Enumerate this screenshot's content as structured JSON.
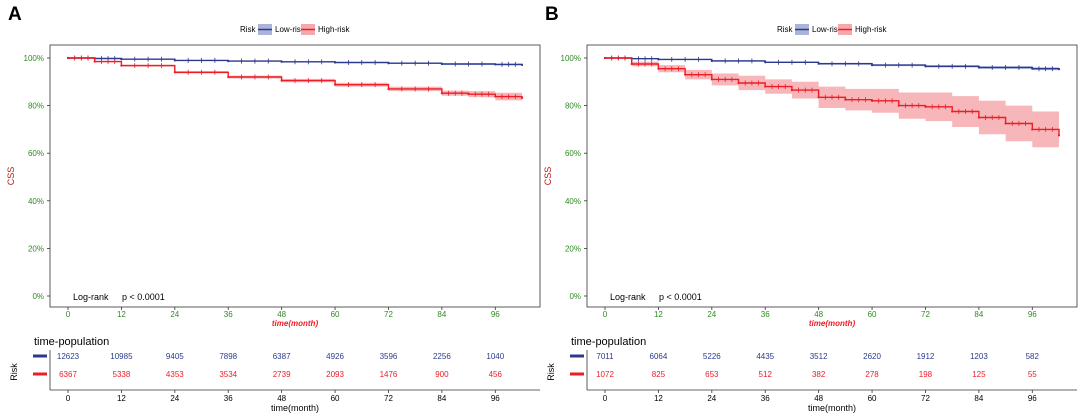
{
  "panels": [
    {
      "label": "A",
      "legend": {
        "title": "Risk",
        "low_label": "Low-risk",
        "high_label": "High-risk"
      },
      "y_label": "CSS",
      "x_label_main": "time(month)",
      "x_label_table": "time(month)",
      "annotation_test": "Log-rank",
      "annotation_p": "p < 0.0001",
      "table_title": "time-population",
      "table_y_label": "Risk",
      "low_counts": [
        "12623",
        "10985",
        "9405",
        "7898",
        "6387",
        "4926",
        "3596",
        "2256",
        "1040"
      ],
      "high_counts": [
        "6367",
        "5338",
        "4353",
        "3534",
        "2739",
        "2093",
        "1476",
        "900",
        "456"
      ]
    },
    {
      "label": "B",
      "legend": {
        "title": "Risk",
        "low_label": "Low-risk",
        "high_label": "High-risk"
      },
      "y_label": "CSS",
      "x_label_main": "time(month)",
      "x_label_table": "time(month)",
      "annotation_test": "Log-rank",
      "annotation_p": "p < 0.0001",
      "table_title": "time-population",
      "table_y_label": "Risk",
      "low_counts": [
        "7011",
        "6064",
        "5226",
        "4435",
        "3512",
        "2620",
        "1912",
        "1203",
        "582"
      ],
      "high_counts": [
        "1072",
        "825",
        "653",
        "512",
        "382",
        "278",
        "198",
        "125",
        "55"
      ]
    }
  ],
  "colors": {
    "low": "#2b3a8f",
    "high": "#ee1c25",
    "low_band": "#aab3d9",
    "high_band": "#f6a9ad",
    "tick_green": "#2e8b22",
    "ylabel_red": "#b71c1c"
  },
  "chart_data": [
    {
      "type": "line",
      "title": "A",
      "xlabel": "time(month)",
      "ylabel": "CSS",
      "x_ticks": [
        0,
        12,
        24,
        36,
        48,
        60,
        72,
        84,
        96
      ],
      "y_ticks": [
        "0%",
        "20%",
        "40%",
        "60%",
        "80%",
        "100%"
      ],
      "xlim": [
        0,
        102
      ],
      "ylim": [
        0,
        1
      ],
      "series": [
        {
          "name": "Low-risk",
          "x": [
            0,
            6,
            12,
            24,
            36,
            48,
            60,
            72,
            84,
            96,
            102
          ],
          "values": [
            1.0,
            0.998,
            0.995,
            0.99,
            0.987,
            0.984,
            0.981,
            0.978,
            0.975,
            0.973,
            0.971
          ],
          "lower": [
            1.0,
            0.997,
            0.994,
            0.989,
            0.985,
            0.982,
            0.979,
            0.976,
            0.972,
            0.969,
            0.966
          ],
          "upper": [
            1.0,
            0.999,
            0.996,
            0.991,
            0.989,
            0.986,
            0.983,
            0.98,
            0.978,
            0.977,
            0.976
          ]
        },
        {
          "name": "High-risk",
          "x": [
            0,
            6,
            12,
            24,
            36,
            48,
            60,
            72,
            84,
            90,
            96,
            102
          ],
          "values": [
            1.0,
            0.985,
            0.968,
            0.94,
            0.92,
            0.905,
            0.888,
            0.87,
            0.852,
            0.848,
            0.838,
            0.832
          ],
          "lower": [
            1.0,
            0.982,
            0.964,
            0.935,
            0.914,
            0.898,
            0.88,
            0.861,
            0.841,
            0.835,
            0.822,
            0.815
          ],
          "upper": [
            1.0,
            0.988,
            0.972,
            0.945,
            0.926,
            0.912,
            0.896,
            0.879,
            0.863,
            0.861,
            0.854,
            0.849
          ]
        }
      ]
    },
    {
      "type": "line",
      "title": "B",
      "xlabel": "time(month)",
      "ylabel": "CSS",
      "x_ticks": [
        0,
        12,
        24,
        36,
        48,
        60,
        72,
        84,
        96
      ],
      "y_ticks": [
        "0%",
        "20%",
        "40%",
        "60%",
        "80%",
        "100%"
      ],
      "xlim": [
        0,
        102
      ],
      "ylim": [
        0,
        1
      ],
      "series": [
        {
          "name": "Low-risk",
          "x": [
            0,
            6,
            12,
            24,
            36,
            48,
            60,
            72,
            84,
            96,
            102
          ],
          "values": [
            1.0,
            0.997,
            0.994,
            0.988,
            0.982,
            0.976,
            0.97,
            0.965,
            0.96,
            0.955,
            0.953
          ],
          "lower": [
            1.0,
            0.996,
            0.992,
            0.985,
            0.979,
            0.972,
            0.966,
            0.96,
            0.955,
            0.949,
            0.946
          ],
          "upper": [
            1.0,
            0.998,
            0.996,
            0.991,
            0.985,
            0.98,
            0.974,
            0.97,
            0.965,
            0.961,
            0.96
          ]
        },
        {
          "name": "High-risk",
          "x": [
            0,
            6,
            12,
            18,
            24,
            30,
            36,
            42,
            48,
            54,
            60,
            66,
            72,
            78,
            84,
            90,
            96,
            102
          ],
          "values": [
            1.0,
            0.975,
            0.955,
            0.93,
            0.91,
            0.895,
            0.88,
            0.865,
            0.835,
            0.825,
            0.82,
            0.8,
            0.795,
            0.775,
            0.75,
            0.725,
            0.7,
            0.675
          ],
          "lower": [
            1.0,
            0.965,
            0.94,
            0.91,
            0.885,
            0.865,
            0.85,
            0.83,
            0.79,
            0.78,
            0.77,
            0.745,
            0.735,
            0.71,
            0.68,
            0.65,
            0.625,
            0.6
          ],
          "upper": [
            1.0,
            0.985,
            0.97,
            0.95,
            0.935,
            0.925,
            0.91,
            0.9,
            0.88,
            0.87,
            0.87,
            0.855,
            0.855,
            0.84,
            0.82,
            0.8,
            0.775,
            0.75
          ]
        }
      ]
    }
  ]
}
